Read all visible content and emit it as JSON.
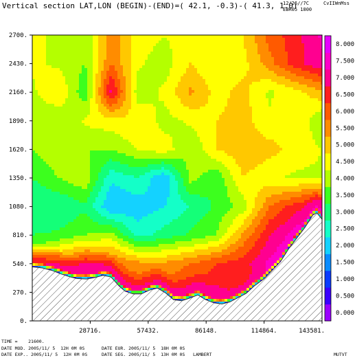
{
  "header": {
    "title": "Vertical section LAT,LON (BEGIN)-(END)=( 42.1, -0.3)-( 41.3, 1.0)",
    "right_line1": "12/26//7C     CvIIWnMss",
    "right_line2": "EBR05 1800"
  },
  "footer": {
    "time": "TIME =    21600.",
    "line2_left": "DATE MOD. 2005/11/ 5  12H 0M 0S",
    "line2_mid": "DATE EUR. 2005/11/ 5  18H 0M 0S",
    "line3_left": "DATE EXP.. 2005/11/ 5  12H 0M 0S",
    "line3_mid": "DATE SEG. 2005/11/ 5  13H 0M 0S   LAMBERT",
    "right": "MUTVT"
  },
  "chart_data": {
    "type": "heatmap",
    "title": "Vertical section LAT,LON (BEGIN)-(END)=( 42.1, -0.3)-( 41.3, 1.0)",
    "xlabel": "",
    "ylabel": "",
    "xlim": [
      0,
      143581
    ],
    "ylim": [
      0,
      2700
    ],
    "x_ticks": [
      "28716.",
      "57432.",
      "86148.",
      "114864.",
      "143581."
    ],
    "x_tick_values": [
      28716,
      57432,
      86148,
      114864,
      143581
    ],
    "y_ticks": [
      "0.",
      "270.",
      "540.",
      "810.",
      "1080.",
      "1350.",
      "1620.",
      "1890.",
      "2160.",
      "2430.",
      "2700."
    ],
    "y_tick_values": [
      0,
      270,
      540,
      810,
      1080,
      1350,
      1620,
      1890,
      2160,
      2430,
      2700
    ],
    "colorbar": {
      "labels": [
        "0.000",
        "0.500",
        "1.000",
        "1.500",
        "2.000",
        "2.500",
        "3.000",
        "3.500",
        "4.000",
        "4.500",
        "5.000",
        "5.500",
        "6.000",
        "6.500",
        "7.000",
        "7.500",
        "8.000"
      ],
      "values": [
        0,
        0.5,
        1.0,
        1.5,
        2.0,
        2.5,
        3.0,
        3.5,
        4.0,
        4.5,
        5.0,
        5.5,
        6.0,
        6.5,
        7.0,
        7.5,
        8.0
      ],
      "colors": [
        "#9a00ff",
        "#3a00ff",
        "#0a3cff",
        "#0a8cff",
        "#14d2ff",
        "#14ffc8",
        "#14ff78",
        "#3cff1e",
        "#b4ff00",
        "#ffff00",
        "#ffc800",
        "#ff8c00",
        "#ff5a00",
        "#ff1e1e",
        "#ff0090",
        "#ff00c8",
        "#e600ff"
      ]
    },
    "terrain": {
      "x": [
        0,
        5000,
        10000,
        14000,
        18000,
        22000,
        27000,
        31000,
        35000,
        39000,
        43000,
        46000,
        50000,
        54000,
        58000,
        62000,
        66000,
        70000,
        74000,
        78000,
        82000,
        86000,
        90000,
        94000,
        98000,
        102000,
        106000,
        110000,
        115000,
        119000,
        123000,
        127000,
        131000,
        135000,
        139000,
        141000,
        143581
      ],
      "height": [
        510,
        500,
        475,
        445,
        420,
        400,
        395,
        410,
        430,
        415,
        330,
        280,
        255,
        255,
        290,
        310,
        265,
        200,
        190,
        215,
        245,
        200,
        170,
        160,
        180,
        220,
        260,
        330,
        400,
        480,
        560,
        680,
        780,
        880,
        1000,
        1020,
        960
      ]
    },
    "field": {
      "nx": 12,
      "ny": 11,
      "x_step": 13053,
      "z_step": 270,
      "values": [
        [
          5.5,
          6.5,
          6.8,
          6.2,
          5.6,
          5.9,
          6.6,
          6.8,
          5.8,
          6.0,
          7.2,
          7.5
        ],
        [
          5.0,
          6.4,
          6.9,
          6.7,
          6.0,
          6.3,
          6.8,
          6.9,
          6.0,
          6.3,
          7.6,
          8.0
        ],
        [
          4.5,
          6.0,
          6.8,
          6.2,
          5.7,
          5.6,
          6.0,
          6.5,
          6.8,
          7.6,
          8.0,
          7.2
        ],
        [
          3.5,
          3.6,
          4.0,
          4.2,
          2.8,
          3.2,
          3.6,
          4.0,
          5.6,
          7.0,
          7.7,
          7.3
        ],
        [
          3.0,
          3.0,
          3.4,
          2.0,
          2.2,
          2.5,
          3.0,
          3.6,
          4.2,
          6.0,
          6.8,
          7.4
        ],
        [
          3.5,
          4.0,
          4.4,
          2.6,
          3.0,
          2.0,
          4.2,
          3.6,
          5.0,
          4.6,
          4.4,
          4.4
        ],
        [
          4.0,
          4.4,
          4.0,
          4.0,
          4.5,
          4.8,
          4.0,
          5.0,
          5.4,
          5.2,
          4.8,
          4.5
        ],
        [
          4.2,
          4.0,
          4.6,
          4.8,
          5.0,
          4.3,
          4.6,
          5.0,
          5.2,
          4.6,
          5.0,
          4.0
        ],
        [
          4.4,
          5.0,
          3.6,
          7.2,
          4.2,
          4.6,
          5.6,
          4.8,
          5.2,
          4.4,
          4.8,
          5.4
        ],
        [
          4.6,
          4.4,
          4.0,
          6.0,
          4.6,
          4.2,
          5.0,
          4.5,
          4.8,
          5.8,
          6.8,
          7.4
        ],
        [
          4.5,
          4.5,
          4.0,
          5.8,
          4.8,
          4.5,
          4.8,
          4.6,
          5.0,
          6.2,
          6.8,
          7.6
        ]
      ]
    },
    "grid": false,
    "legend": "right"
  }
}
